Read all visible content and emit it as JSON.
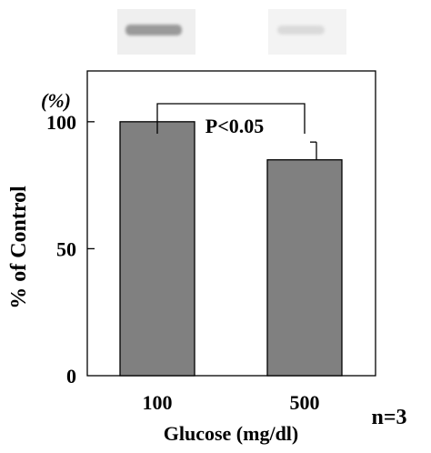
{
  "chart_data": {
    "type": "bar",
    "categories": [
      "100",
      "500"
    ],
    "values": [
      100,
      85
    ],
    "error": [
      0,
      7
    ],
    "ylim": [
      0,
      120
    ],
    "yticks": [
      0,
      50,
      100
    ],
    "xlabel": "Glucose (mg/dl)",
    "ylabel": "% of Control",
    "unit_label": "(%)",
    "significance": "P<0.05",
    "n_label": "n=3",
    "colors": {
      "bar": "#808080",
      "frame": "#000000",
      "blot_band_strong": "#9a9a9a",
      "blot_band_weak": "#dcdcdc",
      "blot_bg": "#ececec"
    },
    "grid": false,
    "blot_panel": "western blot bands above each bar"
  }
}
